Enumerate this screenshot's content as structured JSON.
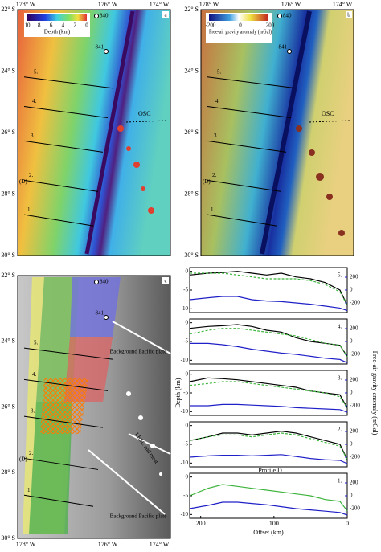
{
  "map_axes": {
    "lon": [
      "178° W",
      "176° W",
      "174° W"
    ],
    "lat": [
      "22° S",
      "24° S",
      "26° S",
      "28° S",
      "30° S"
    ]
  },
  "maps": [
    {
      "panel": "a",
      "colorbar_ticks": [
        10,
        8,
        6,
        4,
        2,
        0
      ],
      "colorbar_label": "Depth (km)",
      "sites": [
        "840",
        "841"
      ],
      "osc": "OSC",
      "profile_labels": [
        "5.",
        "4.",
        "3.",
        "2.",
        "1."
      ],
      "d_label": "(D)"
    },
    {
      "panel": "b",
      "colorbar_ticks": [
        -200,
        0,
        200
      ],
      "colorbar_label": "Free-air gravity anomaly (mGal)",
      "sites": [
        "840",
        "841"
      ],
      "osc": "OSC",
      "profile_labels": [
        "5.",
        "4.",
        "3.",
        "2.",
        "1."
      ],
      "d_label": "(D)"
    },
    {
      "panel": "c",
      "sites": [
        "840",
        "841"
      ],
      "profile_labels": [
        "5.",
        "4.",
        "3.",
        "2.",
        "1."
      ],
      "d_label": "(D)",
      "plate_label": "Background Pacific plate",
      "lrsc_label": "LRSC and moat"
    }
  ],
  "chart_data": [
    {
      "type": "line",
      "label": "5.",
      "x": [
        215,
        190,
        170,
        150,
        130,
        110,
        90,
        70,
        50,
        30,
        10,
        0
      ],
      "xlim": [
        215,
        0
      ],
      "ylim": [
        -11,
        1
      ],
      "yticks": [
        0,
        -5,
        -10
      ],
      "y2lim": [
        -350,
        350
      ],
      "y2ticks": [
        200,
        0,
        -200
      ],
      "series": [
        {
          "color": "#000000",
          "values": [
            -1,
            -0.5,
            -0.3,
            0,
            -0.5,
            -1,
            -0.5,
            -1.5,
            -2,
            -3,
            -5,
            -9
          ]
        },
        {
          "color": "#3cb43c",
          "dashed": true,
          "values": [
            -0.5,
            -0.5,
            -0.5,
            -1,
            -1.5,
            -2,
            -2,
            -2,
            -2.5,
            -3.5,
            -5.5,
            -9
          ]
        },
        {
          "color": "#2020c8",
          "axis": "y2",
          "values": [
            -150,
            -120,
            -100,
            -100,
            -150,
            -170,
            -180,
            -200,
            -220,
            -250,
            -280,
            -320
          ]
        }
      ]
    },
    {
      "type": "line",
      "label": "4.",
      "x": [
        215,
        190,
        170,
        150,
        130,
        110,
        90,
        70,
        50,
        30,
        10,
        0
      ],
      "xlim": [
        215,
        0
      ],
      "ylim": [
        -11,
        1
      ],
      "yticks": [
        0,
        -5,
        -10
      ],
      "y2lim": [
        -350,
        350
      ],
      "y2ticks": [
        200,
        0,
        -200
      ],
      "series": [
        {
          "color": "#000000",
          "values": [
            -1.5,
            -1,
            -0.8,
            -0.5,
            -1,
            -2,
            -2.5,
            -4,
            -5,
            -5.5,
            -6,
            -9
          ]
        },
        {
          "color": "#3cb43c",
          "dashed": true,
          "values": [
            -3,
            -2,
            -1.5,
            -1.5,
            -2,
            -2.5,
            -3,
            -3.5,
            -4.5,
            -5.5,
            -6,
            -9
          ]
        },
        {
          "color": "#2020c8",
          "axis": "y2",
          "values": [
            -30,
            -30,
            -50,
            -80,
            -120,
            -150,
            -180,
            -200,
            -230,
            -260,
            -280,
            -330
          ]
        }
      ]
    },
    {
      "type": "line",
      "label": "3.",
      "ylabel": "Depth (km)",
      "y2label": "Free-air gravity anomaly (mGal)",
      "x": [
        215,
        190,
        170,
        150,
        130,
        110,
        90,
        70,
        50,
        30,
        10,
        0
      ],
      "xlim": [
        215,
        0
      ],
      "ylim": [
        -11,
        1
      ],
      "yticks": [
        0,
        -5,
        -10
      ],
      "y2lim": [
        -350,
        350
      ],
      "y2ticks": [
        200,
        0,
        -200
      ],
      "series": [
        {
          "color": "#000000",
          "values": [
            -2,
            -1,
            -1.2,
            -1.5,
            -2,
            -2.5,
            -3,
            -3.5,
            -4.5,
            -5,
            -5.5,
            -9
          ]
        },
        {
          "color": "#3cb43c",
          "dashed": true,
          "values": [
            -3,
            -2.5,
            -2,
            -2,
            -2.5,
            -3,
            -3.5,
            -4,
            -4.5,
            -5,
            -6,
            -9
          ]
        },
        {
          "color": "#2020c8",
          "axis": "y2",
          "values": [
            -200,
            -200,
            -180,
            -180,
            -190,
            -200,
            -210,
            -230,
            -240,
            -250,
            -260,
            -300
          ]
        }
      ]
    },
    {
      "type": "line",
      "label": "2.",
      "annotation": "Profile D",
      "x": [
        215,
        190,
        170,
        150,
        130,
        110,
        90,
        70,
        50,
        30,
        10,
        0
      ],
      "xlim": [
        215,
        0
      ],
      "ylim": [
        -11,
        1
      ],
      "yticks": [
        0,
        -5,
        -10
      ],
      "y2lim": [
        -350,
        350
      ],
      "y2ticks": [
        200,
        0,
        -200
      ],
      "series": [
        {
          "color": "#000000",
          "values": [
            -4,
            -3,
            -2,
            -2,
            -2.5,
            -2,
            -1.5,
            -2,
            -3,
            -4,
            -5,
            -9
          ]
        },
        {
          "color": "#3cb43c",
          "dashed": true,
          "values": [
            -4,
            -3,
            -2.5,
            -2.5,
            -3,
            -2.5,
            -2,
            -2.5,
            -3.5,
            -4.5,
            -5.5,
            -9
          ]
        },
        {
          "color": "#2020c8",
          "axis": "y2",
          "values": [
            -200,
            -180,
            -170,
            -170,
            -180,
            -170,
            -160,
            -190,
            -220,
            -240,
            -250,
            -300
          ]
        }
      ]
    },
    {
      "type": "line",
      "label": "1.",
      "xlabel": "Offset (km)",
      "x": [
        215,
        190,
        170,
        150,
        130,
        110,
        90,
        70,
        50,
        30,
        10,
        0
      ],
      "xlim": [
        215,
        0
      ],
      "xticks": [
        200,
        100,
        0
      ],
      "ylim": [
        -11,
        1
      ],
      "yticks": [
        0,
        -5,
        -10
      ],
      "y2lim": [
        -350,
        350
      ],
      "y2ticks": [
        200,
        0,
        -200
      ],
      "series": [
        {
          "color": "#3cb43c",
          "values": [
            -5,
            -3,
            -2,
            -2.5,
            -3,
            -3.5,
            -4,
            -4.5,
            -5,
            -6,
            -6.5,
            -9
          ]
        },
        {
          "color": "#2020c8",
          "axis": "y2",
          "values": [
            -200,
            -150,
            -100,
            -100,
            -120,
            -140,
            -170,
            -200,
            -220,
            -240,
            -260,
            -300
          ]
        }
      ]
    }
  ]
}
